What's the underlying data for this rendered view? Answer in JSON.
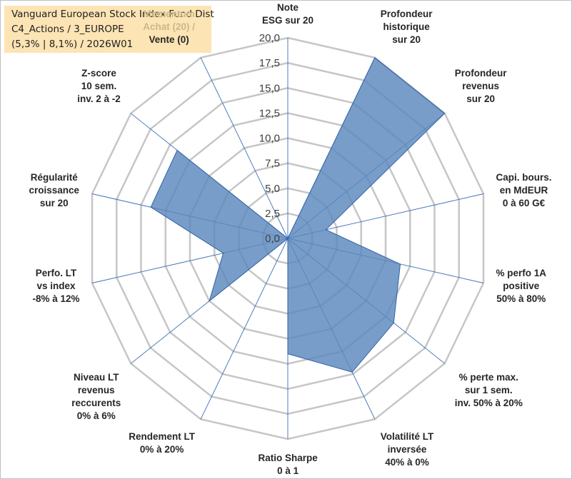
{
  "title": {
    "line1": "Vanguard European Stock Index Fund Dist",
    "line2": "C4_Actions / 3_EUROPE",
    "line3": "(5,3% | 8,1%) / 2026W01"
  },
  "colors": {
    "fill": "#5b87bd",
    "stroke": "#2f62a6",
    "grid": "#c6c6c6",
    "spoke": "#3a6fb5",
    "title_bg": "#fce4b4"
  },
  "chart_data": {
    "type": "radar",
    "title": "Vanguard European Stock Index Fund Dist",
    "r_min": 0,
    "r_max": 20,
    "r_step": 2.5,
    "tick_labels": [
      "0,0",
      "2,5",
      "5,0",
      "7,5",
      "10,0",
      "12,5",
      "15,0",
      "17,5",
      "20,0"
    ],
    "axes": [
      {
        "lines": [
          "Note",
          "ESG sur 20"
        ],
        "value": 0
      },
      {
        "lines": [
          "Profondeur",
          "historique",
          "sur 20"
        ],
        "value": 20
      },
      {
        "lines": [
          "Profondeur",
          "revenus",
          "sur 20"
        ],
        "value": 20
      },
      {
        "lines": [
          "Capi. bours.",
          "en MdEUR",
          "0 à 60 G€"
        ],
        "value": 3.9
      },
      {
        "lines": [
          "% perfo 1A",
          "positive",
          "50% à 80%"
        ],
        "value": 11.5
      },
      {
        "lines": [
          "% perte max.",
          "sur 1 sem.",
          "inv. 50% à 20%"
        ],
        "value": 13.5
      },
      {
        "lines": [
          "Volatilité LT",
          "inversée",
          "40% à 0%"
        ],
        "value": 14.8
      },
      {
        "lines": [
          "Ratio Sharpe",
          "0 à 1"
        ],
        "value": 11.5
      },
      {
        "lines": [
          "Rendement LT",
          "0% à 20%"
        ],
        "value": 0
      },
      {
        "lines": [
          "Niveau LT",
          "revenus",
          "reccurents",
          "0% à 6%"
        ],
        "value": 10.0
      },
      {
        "lines": [
          "Perfo. LT",
          "vs index",
          "-8% à 12%"
        ],
        "value": 6.6
      },
      {
        "lines": [
          "Régularité",
          "croissance",
          "sur 20"
        ],
        "value": 14.0
      },
      {
        "lines": [
          "Z-score",
          "10 sem.",
          "inv. 2 à -2"
        ],
        "value": 14.1
      },
      {
        "lines": [
          "Momentum",
          "Achat (20) /",
          "Vente (0)"
        ],
        "value": 0
      }
    ]
  }
}
